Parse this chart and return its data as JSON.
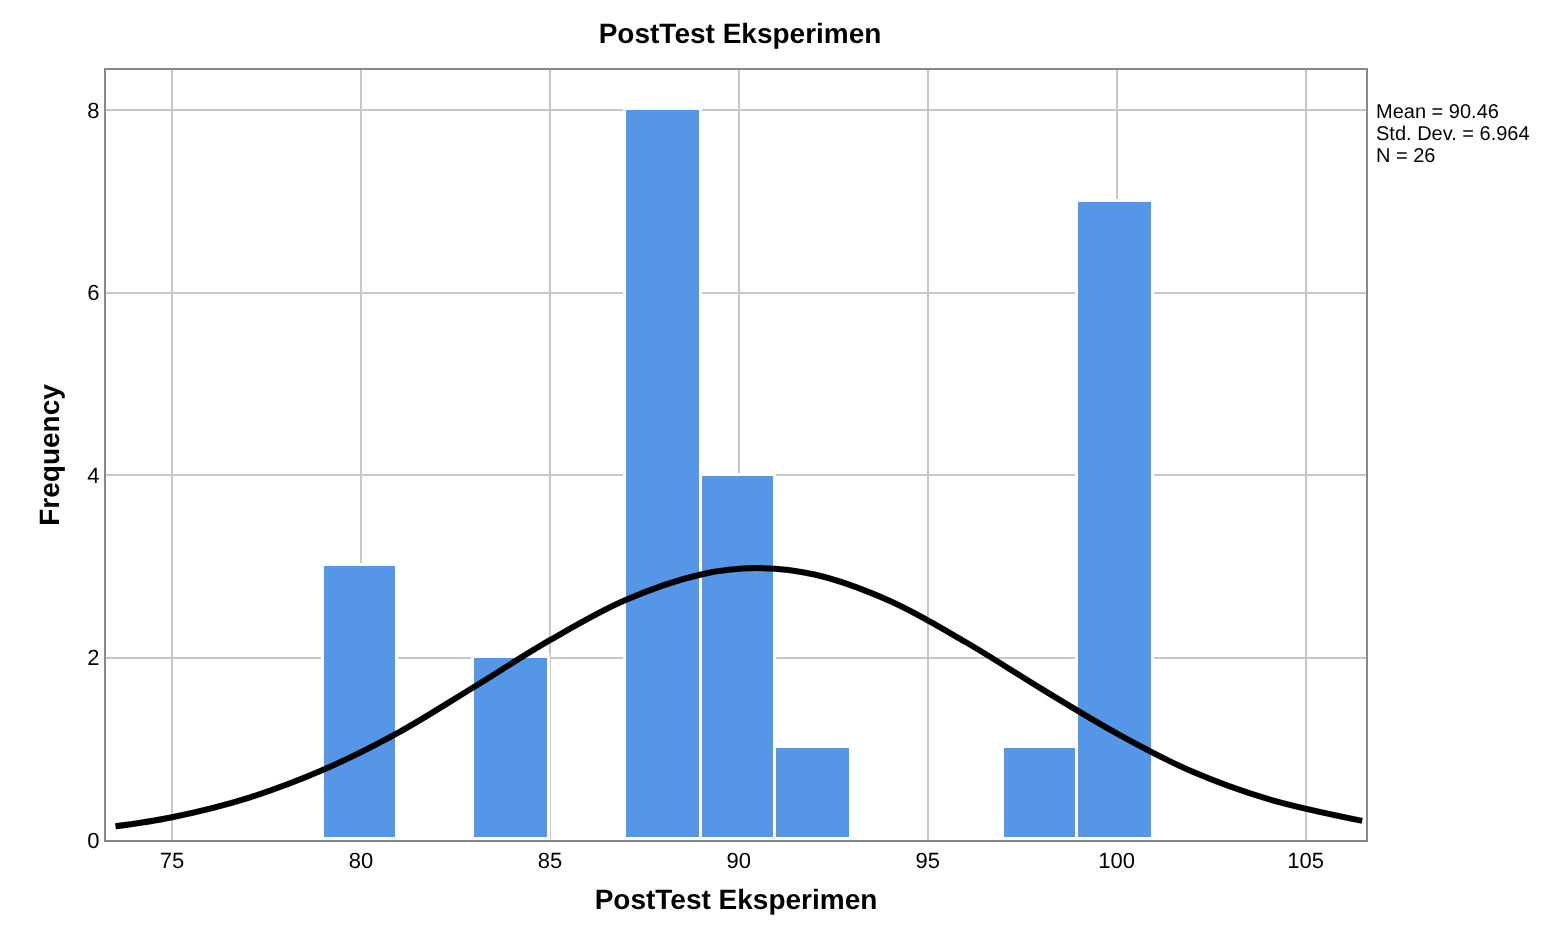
{
  "chart_data": {
    "type": "histogram",
    "title": "PostTest Eksperimen",
    "xlabel": "PostTest Eksperimen",
    "ylabel": "Frequency",
    "bins": [
      79,
      81,
      83,
      85,
      87,
      89,
      91,
      93,
      95,
      97,
      99,
      101
    ],
    "values": [
      3,
      0,
      2,
      0,
      8,
      4,
      1,
      0,
      0,
      1,
      7
    ],
    "color": "#5596e6",
    "series": [
      {
        "type": "line",
        "color": "#000000",
        "x": [
          73.5,
          75,
          77,
          79,
          81,
          83,
          85,
          87,
          89,
          90.46,
          92,
          94,
          96,
          98,
          100,
          102,
          104,
          106.5
        ],
        "values": [
          0.15,
          0.25,
          0.46,
          0.77,
          1.18,
          1.68,
          2.19,
          2.63,
          2.91,
          2.98,
          2.91,
          2.62,
          2.17,
          1.66,
          1.17,
          0.75,
          0.45,
          0.21
        ]
      }
    ],
    "xlim": [
      73.25,
      106.6
    ],
    "xticks": [
      75,
      80,
      85,
      90,
      95,
      100,
      105
    ],
    "ylim": [
      0,
      8.44
    ],
    "yticks": [
      0,
      2,
      4,
      6,
      8
    ],
    "grid": true,
    "annotations": [
      "Mean = 90.46",
      "Std. Dev. = 6.964",
      "N = 26"
    ]
  }
}
